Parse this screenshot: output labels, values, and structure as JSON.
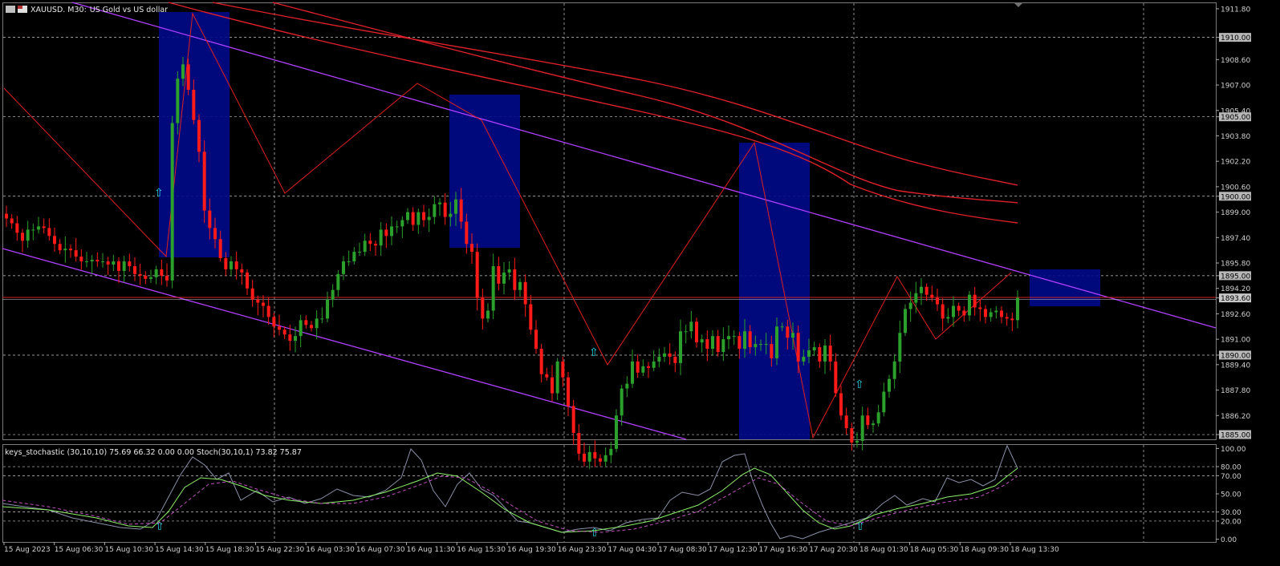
{
  "header": {
    "symbol": "XAUUSD.",
    "timeframe": "M30:",
    "description": "US Gold vs US dollar"
  },
  "indicator": {
    "legend": "keys_stochastic (30,10,10) 75.69 66.32 0.00 0.00 Stoch(30,10,1) 73.82 75.87"
  },
  "price_axis": {
    "labels": [
      "1911.80",
      "1910.00",
      "1908.60",
      "1907.00",
      "1905.40",
      "1905.00",
      "1903.80",
      "1902.20",
      "1900.60",
      "1900.00",
      "1899.00",
      "1897.40",
      "1895.80",
      "1895.00",
      "1894.20",
      "1893.60",
      "1892.60",
      "1891.00",
      "1890.00",
      "1889.40",
      "1887.80",
      "1886.20",
      "1885.00"
    ],
    "boxed": [
      "1910.00",
      "1905.00",
      "1900.00",
      "1895.00",
      "1890.00",
      "1885.00"
    ],
    "current_price": "1893.60"
  },
  "stoch_axis": {
    "labels": [
      "100.00",
      "80.00",
      "70.00",
      "50.00",
      "30.00",
      "20.00",
      "0.00"
    ]
  },
  "time_axis": {
    "labels": [
      "15 Aug 2023",
      "15 Aug 06:30",
      "15 Aug 10:30",
      "15 Aug 14:30",
      "15 Aug 18:30",
      "15 Aug 22:30",
      "16 Aug 03:30",
      "16 Aug 07:30",
      "16 Aug 11:30",
      "16 Aug 15:30",
      "16 Aug 19:30",
      "16 Aug 23:30",
      "17 Aug 04:30",
      "17 Aug 08:30",
      "17 Aug 12:30",
      "17 Aug 16:30",
      "17 Aug 20:30",
      "18 Aug 01:30",
      "18 Aug 05:30",
      "18 Aug 09:30",
      "18 Aug 13:30"
    ]
  },
  "chart_data": {
    "type": "candlestick",
    "ylim": [
      1884.7,
      1912.2
    ],
    "close_series": [
      1898.6,
      1898.3,
      1897.7,
      1897.2,
      1897.9,
      1897.9,
      1898.1,
      1898.0,
      1897.5,
      1897.0,
      1896.6,
      1896.7,
      1896.6,
      1896.2,
      1895.9,
      1895.9,
      1896.0,
      1895.9,
      1895.9,
      1895.7,
      1895.9,
      1895.3,
      1895.9,
      1895.6,
      1895.1,
      1895.0,
      1894.8,
      1894.9,
      1895.4,
      1895.0,
      1894.7,
      1904.6,
      1907.4,
      1908.3,
      1906.7,
      1904.8,
      1902.8,
      1899.1,
      1898.0,
      1897.3,
      1896.1,
      1895.4,
      1895.9,
      1895.4,
      1895.2,
      1894.2,
      1893.5,
      1893.3,
      1893.1,
      1892.4,
      1891.8,
      1891.6,
      1891.3,
      1890.9,
      1891.2,
      1892.2,
      1891.9,
      1891.7,
      1892.3,
      1892.3,
      1893.5,
      1894.1,
      1895.1,
      1895.9,
      1895.9,
      1896.5,
      1896.5,
      1897.2,
      1897.0,
      1896.9,
      1897.9,
      1897.5,
      1898.1,
      1898.1,
      1898.5,
      1899.0,
      1898.2,
      1899.0,
      1898.5,
      1898.7,
      1899.5,
      1899.6,
      1898.7,
      1898.9,
      1899.8,
      1898.4,
      1897.0,
      1896.5,
      1893.6,
      1892.3,
      1892.8,
      1895.6,
      1894.5,
      1895.2,
      1895.4,
      1894.1,
      1894.6,
      1893.2,
      1891.6,
      1890.4,
      1888.8,
      1888.6,
      1887.6,
      1889.6,
      1888.6,
      1886.8,
      1885.1,
      1883.8,
      1883.3,
      1883.9,
      1883.5,
      1883.3,
      1883.7,
      1884.1,
      1886.2,
      1887.9,
      1888.2,
      1889.6,
      1888.9,
      1889.3,
      1889.2,
      1889.6,
      1889.9,
      1890.1,
      1889.9,
      1889.5,
      1891.5,
      1891.5,
      1892.1,
      1890.8,
      1891.0,
      1890.4,
      1891.2,
      1890.2,
      1891.0,
      1891.2,
      1891.2,
      1890.4,
      1891.5,
      1890.5,
      1890.7,
      1890.7,
      1890.7,
      1889.8,
      1891.8,
      1891.8,
      1891.1,
      1891.4,
      1889.6,
      1889.9,
      1890.3,
      1890.5,
      1889.6,
      1890.6,
      1889.6,
      1887.6,
      1886.2,
      1885.4,
      1884.5,
      1884.6,
      1886.2,
      1885.6,
      1885.7,
      1886.4,
      1887.7,
      1888.5,
      1889.6,
      1891.4,
      1892.9,
      1893.3,
      1893.9,
      1894.3,
      1893.8,
      1893.6,
      1893.2,
      1892.3,
      1892.4,
      1893.1,
      1892.8,
      1892.5,
      1893.8,
      1893.0,
      1892.9,
      1892.4,
      1892.7,
      1892.8,
      1892.4,
      1892.3,
      1892.2,
      1893.6
    ],
    "sar_price": 1893.6
  }
}
